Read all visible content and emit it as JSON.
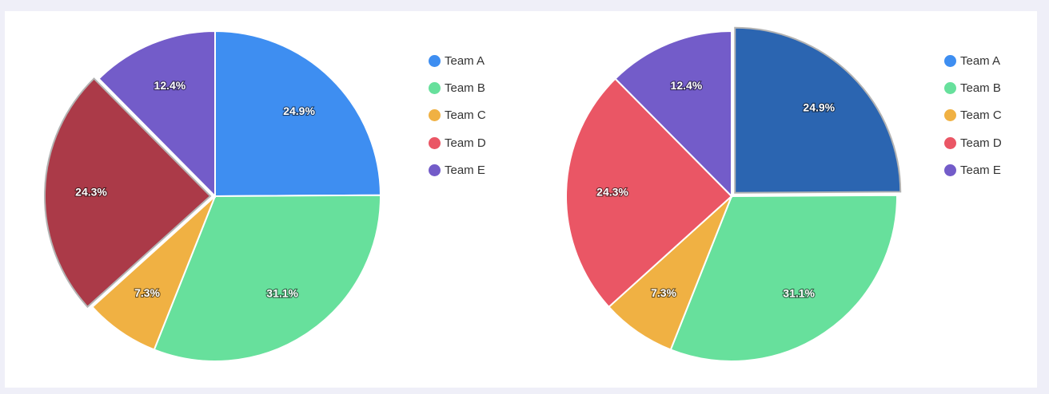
{
  "chart_data": [
    {
      "type": "pie",
      "categories": [
        "Team A",
        "Team B",
        "Team C",
        "Team D",
        "Team E"
      ],
      "values": [
        24.9,
        31.1,
        7.3,
        24.3,
        12.4
      ],
      "labels": [
        "24.9%",
        "31.1%",
        "7.3%",
        "24.3%",
        "12.4%"
      ],
      "colors": [
        "#3e8ef1",
        "#67e09c",
        "#f0b143",
        "#ea5665",
        "#735cc9"
      ],
      "highlighted_category": "Team D",
      "highlight_color": "#ab3a48",
      "legend_position": "right"
    },
    {
      "type": "pie",
      "categories": [
        "Team A",
        "Team B",
        "Team C",
        "Team D",
        "Team E"
      ],
      "values": [
        24.9,
        31.1,
        7.3,
        24.3,
        12.4
      ],
      "labels": [
        "24.9%",
        "31.1%",
        "7.3%",
        "24.3%",
        "12.4%"
      ],
      "colors": [
        "#3e8ef1",
        "#67e09c",
        "#f0b143",
        "#ea5665",
        "#735cc9"
      ],
      "highlighted_category": "Team A",
      "highlight_color": "#2b65b1",
      "legend_position": "right"
    }
  ]
}
